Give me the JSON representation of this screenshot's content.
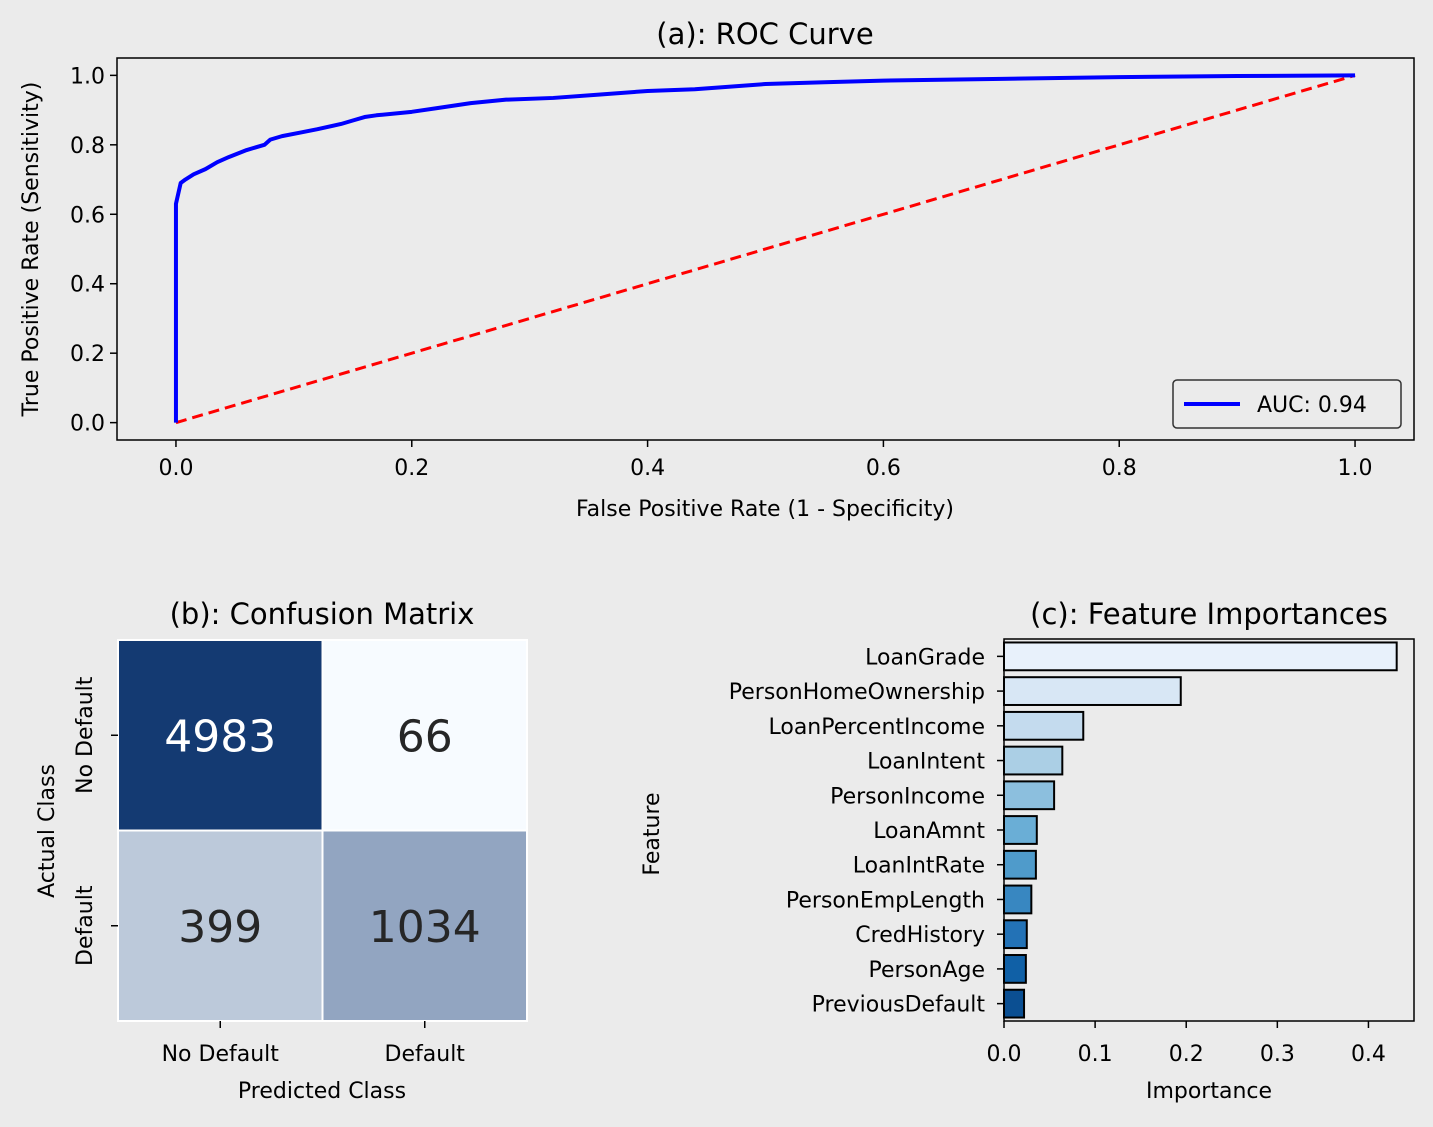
{
  "chart_data": [
    {
      "type": "line",
      "title": "(a): ROC Curve",
      "xlabel": "False Positive Rate (1 - Specificity)",
      "ylabel": "True Positive Rate (Sensitivity)",
      "xlim": [
        -0.05,
        1.05
      ],
      "ylim": [
        -0.05,
        1.05
      ],
      "xticks": [
        "0.0",
        "0.2",
        "0.4",
        "0.6",
        "0.8",
        "1.0"
      ],
      "yticks": [
        "0.0",
        "0.2",
        "0.4",
        "0.6",
        "0.8",
        "1.0"
      ],
      "legend_position": "lower-right",
      "grid": false,
      "series": [
        {
          "name": "AUC: 0.94",
          "color": "#0000ff",
          "style": "solid",
          "x": [
            0,
            0,
            0,
            0.002,
            0.004,
            0.008,
            0.015,
            0.025,
            0.035,
            0.045,
            0.06,
            0.075,
            0.08,
            0.09,
            0.105,
            0.12,
            0.14,
            0.15,
            0.16,
            0.17,
            0.2,
            0.22,
            0.25,
            0.28,
            0.32,
            0.36,
            0.4,
            0.44,
            0.5,
            0.55,
            0.6,
            0.7,
            0.8,
            0.9,
            1.0
          ],
          "y": [
            0,
            0.55,
            0.63,
            0.66,
            0.69,
            0.7,
            0.715,
            0.73,
            0.75,
            0.765,
            0.785,
            0.8,
            0.815,
            0.825,
            0.835,
            0.845,
            0.86,
            0.87,
            0.88,
            0.885,
            0.895,
            0.905,
            0.92,
            0.93,
            0.935,
            0.945,
            0.955,
            0.96,
            0.975,
            0.98,
            0.985,
            0.99,
            0.995,
            0.998,
            1.0
          ]
        },
        {
          "name": "",
          "color": "#ff0000",
          "style": "dashed",
          "x": [
            0,
            1
          ],
          "y": [
            0,
            1
          ]
        }
      ]
    },
    {
      "type": "heatmap",
      "title": "(b): Confusion Matrix",
      "xlabel": "Predicted Class",
      "ylabel": "Actual Class",
      "x_categories": [
        "No Default",
        "Default"
      ],
      "y_categories": [
        "No Default",
        "Default"
      ],
      "values": [
        [
          4983,
          66
        ],
        [
          399,
          1034
        ]
      ],
      "cell_labels": [
        [
          "4983",
          "66"
        ],
        [
          "399",
          "1034"
        ]
      ],
      "colormap": "Blues"
    },
    {
      "type": "bar",
      "orientation": "horizontal",
      "title": "(c): Feature Importances",
      "xlabel": "Importance",
      "ylabel": "Feature",
      "xlim": [
        0,
        0.45
      ],
      "xticks": [
        "0.0",
        "0.1",
        "0.2",
        "0.3",
        "0.4"
      ],
      "categories": [
        "LoanGrade",
        "PersonHomeOwnership",
        "LoanPercentIncome",
        "LoanIntent",
        "PersonIncome",
        "LoanAmnt",
        "LoanIntRate",
        "PersonEmpLength",
        "CredHistory",
        "PersonAge",
        "PreviousDefault"
      ],
      "values": [
        0.431,
        0.194,
        0.087,
        0.064,
        0.055,
        0.036,
        0.035,
        0.03,
        0.025,
        0.024,
        0.022
      ],
      "colors": [
        "#e8f1fb",
        "#d8e7f5",
        "#c4dbee",
        "#abcfe5",
        "#8cbfde",
        "#6aaed6",
        "#4f9bcb",
        "#3887c1",
        "#2372b6",
        "#1060a6",
        "#0b4f92"
      ]
    }
  ]
}
